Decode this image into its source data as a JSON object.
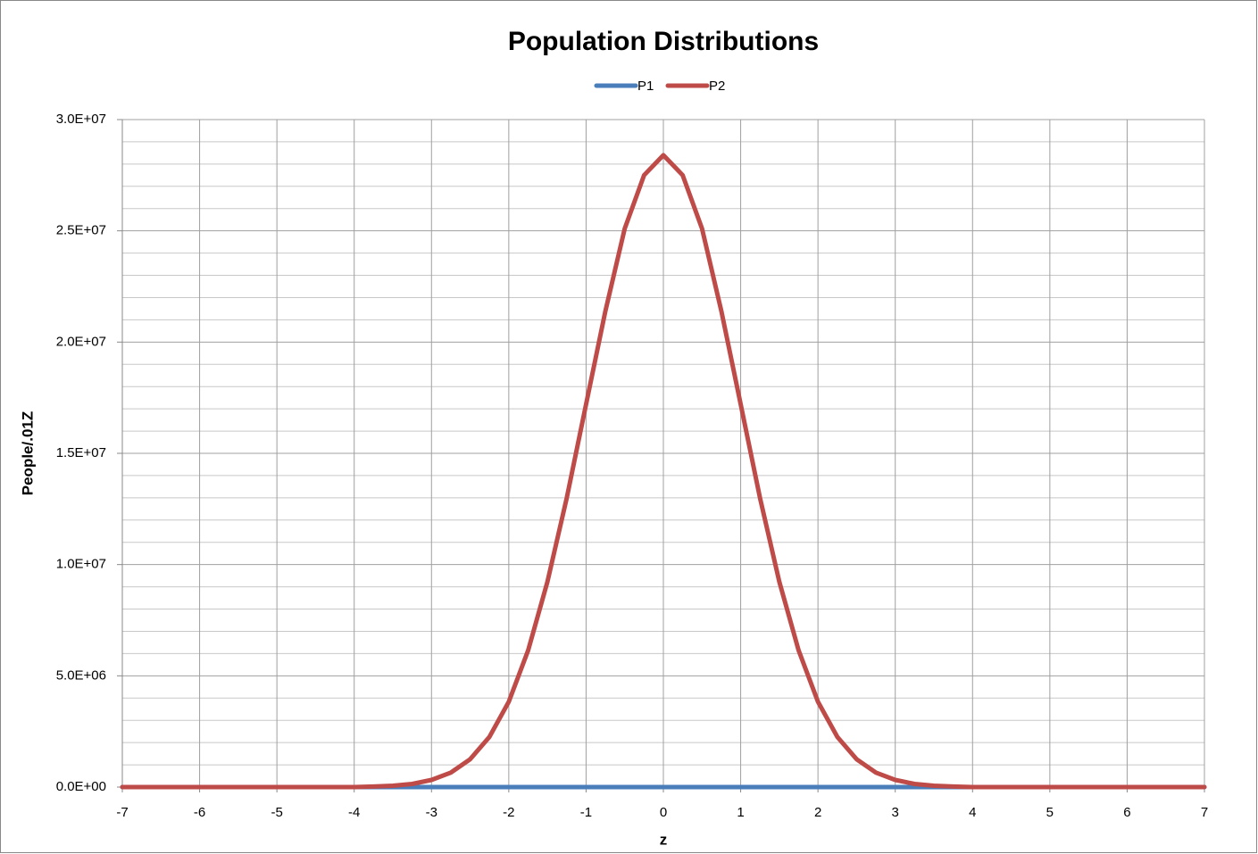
{
  "chart_data": {
    "type": "line",
    "title": "Population Distributions",
    "x_label": "z",
    "y_label": "People/.01Z",
    "x": [
      -7,
      -6,
      -5,
      -4,
      -3.75,
      -3.5,
      -3.25,
      -3,
      -2.75,
      -2.5,
      -2.25,
      -2,
      -1.75,
      -1.5,
      -1.25,
      -1,
      -0.75,
      -0.5,
      -0.25,
      0,
      0.25,
      0.5,
      0.75,
      1,
      1.25,
      1.5,
      1.75,
      2,
      2.25,
      2.5,
      2.75,
      3,
      3.25,
      3.5,
      3.75,
      4,
      5,
      6,
      7
    ],
    "series": [
      {
        "name": "P1",
        "color": "#4a7ebb",
        "values": [
          0,
          0,
          0,
          0,
          0,
          0,
          0,
          0,
          0,
          0,
          0,
          0,
          0,
          0,
          0,
          0,
          0,
          0,
          0,
          0,
          0,
          0,
          0,
          0,
          0,
          0,
          0,
          0,
          0,
          0,
          0,
          0,
          0,
          0,
          0,
          0,
          0,
          0,
          0
        ]
      },
      {
        "name": "P2",
        "color": "#be4b48",
        "values": [
          0,
          0,
          0,
          0,
          25000,
          60000,
          140000,
          320000,
          650000,
          1250000,
          2260000,
          3840000,
          6140000,
          9220000,
          13000000,
          17200000,
          21400000,
          25100000,
          27500000,
          28400000,
          27500000,
          25100000,
          21400000,
          17200000,
          13000000,
          9220000,
          6140000,
          3840000,
          2260000,
          1250000,
          650000,
          320000,
          140000,
          60000,
          25000,
          0,
          0,
          0,
          0
        ]
      }
    ],
    "xlim": [
      -7,
      7
    ],
    "xticks": [
      -7,
      -6,
      -5,
      -4,
      -3,
      -2,
      -1,
      0,
      1,
      2,
      3,
      4,
      5,
      6,
      7
    ],
    "ylim": [
      0,
      30000000
    ],
    "yticks": [
      {
        "value": 0,
        "label": "0.0E+00"
      },
      {
        "value": 5000000,
        "label": "5.0E+06"
      },
      {
        "value": 10000000,
        "label": "1.0E+07"
      },
      {
        "value": 15000000,
        "label": "1.5E+07"
      },
      {
        "value": 20000000,
        "label": "2.0E+07"
      },
      {
        "value": 25000000,
        "label": "2.5E+07"
      },
      {
        "value": 30000000,
        "label": "3.0E+07"
      }
    ],
    "minor_yticks": [
      1000000,
      2000000,
      3000000,
      4000000,
      6000000,
      7000000,
      8000000,
      9000000,
      11000000,
      12000000,
      13000000,
      14000000,
      16000000,
      17000000,
      18000000,
      19000000,
      21000000,
      22000000,
      23000000,
      24000000,
      26000000,
      27000000,
      28000000,
      29000000
    ],
    "grid": true,
    "legend": "top"
  }
}
